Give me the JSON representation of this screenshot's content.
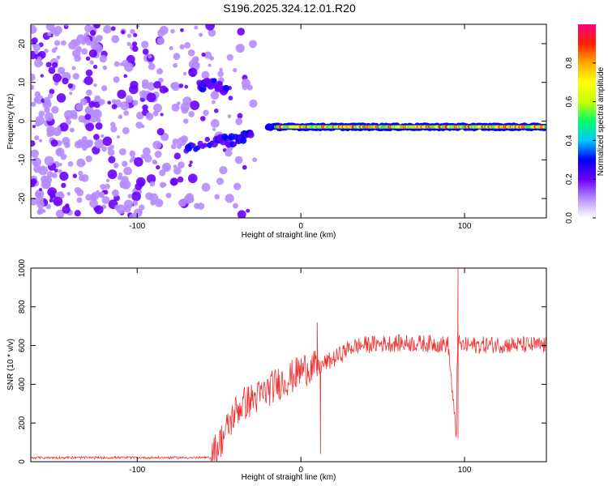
{
  "title": "S196.2025.324.12.01.R20",
  "chart_data": [
    {
      "type": "heatmap",
      "xlabel": "Height of straight line (km)",
      "ylabel": "Frequency (Hz)",
      "xlim": [
        -165,
        150
      ],
      "ylim": [
        -25,
        25
      ],
      "xticks": [
        -100,
        0,
        100
      ],
      "yticks": [
        -20,
        -10,
        0,
        10,
        20
      ],
      "colorbar": {
        "label": "Normalized spectral amplitude",
        "range": [
          0,
          1
        ],
        "ticks": [
          "0.0",
          "0.2",
          "0.4",
          "0.6",
          "0.8"
        ],
        "colors": [
          "#ffffff",
          "#b58cff",
          "#6a00ff",
          "#0000ff",
          "#00c8ff",
          "#00ff66",
          "#c8ff00",
          "#ffff00",
          "#ffaa00",
          "#ff2200",
          "#ff0080"
        ]
      },
      "features": {
        "noise_region_km": [
          -165,
          -25
        ],
        "signal_line_freq_hz": -1.5,
        "signal_line_km": [
          -20,
          150
        ],
        "branch_upper": [
          [
            -62,
            9
          ],
          [
            -55,
            10
          ],
          [
            -45,
            8
          ]
        ],
        "branch_lower": [
          [
            -70,
            -7
          ],
          [
            -50,
            -5
          ],
          [
            -38,
            -5
          ],
          [
            -30,
            -3
          ]
        ]
      }
    },
    {
      "type": "line",
      "xlabel": "Height of straight line (km)",
      "ylabel": "SNR (10 * v/v)",
      "xlim": [
        -165,
        150
      ],
      "ylim": [
        0,
        1000
      ],
      "xticks": [
        -100,
        0,
        100
      ],
      "yticks": [
        0,
        200,
        400,
        600,
        800,
        1000
      ],
      "series_color": "#ee3333",
      "series": [
        {
          "name": "SNR",
          "x": [
            -165,
            -60,
            -52,
            -45,
            -40,
            -35,
            -30,
            -25,
            -20,
            -15,
            -10,
            -5,
            0,
            5,
            10,
            15,
            20,
            25,
            30,
            40,
            50,
            60,
            80,
            90,
            95,
            96,
            97,
            100,
            120,
            150
          ],
          "values": [
            20,
            20,
            60,
            170,
            260,
            300,
            320,
            340,
            370,
            400,
            420,
            440,
            470,
            490,
            480,
            510,
            530,
            560,
            590,
            605,
            610,
            612,
            610,
            605,
            120,
            1000,
            600,
            600,
            605,
            600
          ],
          "spikes": [
            [
              10,
              720
            ],
            [
              12,
              40
            ],
            [
              96,
              1000
            ],
            [
              96,
              120
            ]
          ]
        }
      ]
    }
  ]
}
